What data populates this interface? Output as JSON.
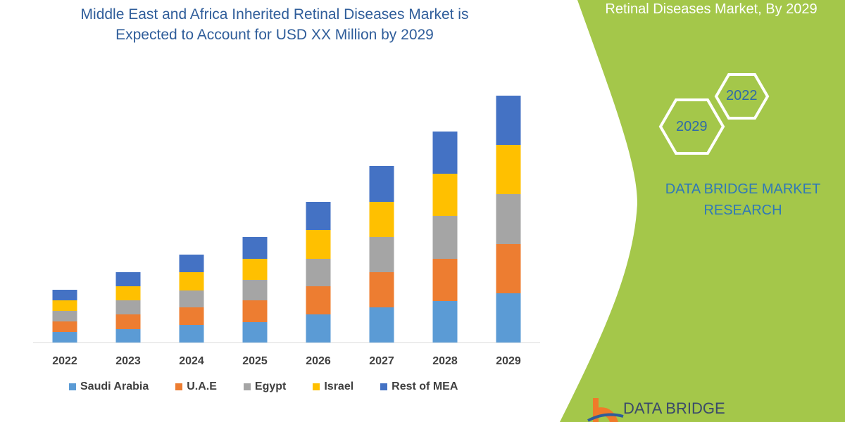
{
  "title_line1": "Middle East and Africa Inherited Retinal Diseases Market is",
  "title_line2": "Expected to Account for USD XX Million by 2029",
  "panel": {
    "title": "Retinal Diseases Market, By 2029",
    "hex_years": [
      "2022",
      "2029"
    ],
    "brand_line1": "DATA BRIDGE MARKET",
    "brand_line2": "RESEARCH",
    "logo_text": "DATA BRIDGE",
    "accent": "#a4c74a"
  },
  "chart_data": {
    "type": "bar",
    "stacked": true,
    "title": "",
    "xlabel": "",
    "ylabel": "",
    "grid": false,
    "legend_position": "bottom",
    "categories": [
      "2022",
      "2023",
      "2024",
      "2025",
      "2026",
      "2027",
      "2028",
      "2029"
    ],
    "series": [
      {
        "name": "Saudi Arabia",
        "color": "#5b9bd5",
        "values": [
          15,
          19,
          25,
          29,
          40,
          50,
          59,
          70
        ]
      },
      {
        "name": "U.A.E",
        "color": "#ed7d31",
        "values": [
          15,
          21,
          25,
          31,
          40,
          50,
          60,
          70
        ]
      },
      {
        "name": "Egypt",
        "color": "#a5a5a5",
        "values": [
          15,
          20,
          24,
          29,
          39,
          50,
          61,
          71
        ]
      },
      {
        "name": "Israel",
        "color": "#ffc000",
        "values": [
          15,
          20,
          26,
          30,
          41,
          50,
          60,
          70
        ]
      },
      {
        "name": "Rest of MEA",
        "color": "#4472c4",
        "values": [
          15,
          20,
          25,
          31,
          40,
          51,
          60,
          70
        ]
      }
    ]
  }
}
